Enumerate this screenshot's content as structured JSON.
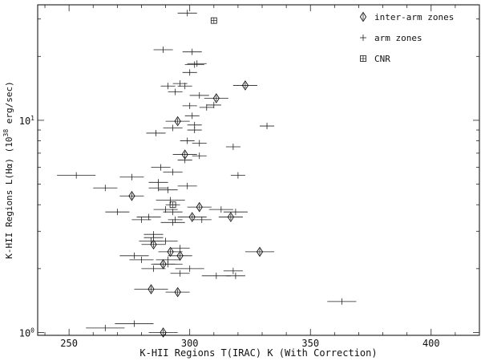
{
  "chart_data": {
    "type": "scatter",
    "title": "",
    "xlabel": "K-HII Regions T(IRAC) K (With Correction)",
    "ylabel_main": "K-HII Regions L(Hα) (10",
    "ylabel_exp": "38",
    "ylabel_tail": " erg/sec)",
    "xlim": [
      237,
      420
    ],
    "ylim": [
      0.97,
      35
    ],
    "y_scale": "log",
    "x_ticks": [
      250,
      300,
      350,
      400
    ],
    "x_tick_labels": [
      "250",
      "300",
      "350",
      "400"
    ],
    "y_tick_labels": [
      {
        "value": 1,
        "base": "10",
        "exp": "0"
      },
      {
        "value": 10,
        "base": "10",
        "exp": "1"
      }
    ],
    "legend_position": "top-right",
    "legend": [
      {
        "name": "inter-arm zones",
        "marker": "diamond"
      },
      {
        "name": "arm zones",
        "marker": "plus"
      },
      {
        "name": "CNR",
        "marker": "boxplus"
      }
    ],
    "series": [
      {
        "name": "inter-arm zones",
        "marker": "diamond",
        "points": [
          [
            323,
            14.6
          ],
          [
            311,
            12.7
          ],
          [
            295,
            9.9
          ],
          [
            298,
            6.9
          ],
          [
            276,
            4.4
          ],
          [
            304,
            3.9
          ],
          [
            301,
            3.5
          ],
          [
            317,
            3.5
          ],
          [
            285,
            2.6
          ],
          [
            292,
            2.4
          ],
          [
            296,
            2.3
          ],
          [
            329,
            2.4
          ],
          [
            289,
            2.1
          ],
          [
            284,
            1.6
          ],
          [
            295,
            1.55
          ],
          [
            289,
            1.0
          ]
        ],
        "xerr": [
          5,
          5,
          5,
          5,
          5,
          5,
          6,
          5,
          5,
          5,
          5,
          6,
          5,
          7,
          5,
          6
        ]
      },
      {
        "name": "arm zones",
        "marker": "plus",
        "points": [
          [
            299,
            32
          ],
          [
            289,
            21.5
          ],
          [
            301,
            21
          ],
          [
            303,
            18.5
          ],
          [
            302,
            18.3
          ],
          [
            300,
            16.8
          ],
          [
            296,
            14.9
          ],
          [
            291,
            14.5
          ],
          [
            298,
            14.5
          ],
          [
            294,
            13.6
          ],
          [
            304,
            13.1
          ],
          [
            310,
            11.8
          ],
          [
            300,
            11.7
          ],
          [
            307,
            11.5
          ],
          [
            301,
            10.5
          ],
          [
            293,
            9.2
          ],
          [
            302,
            9.5
          ],
          [
            302,
            9.0
          ],
          [
            286,
            8.7
          ],
          [
            332,
            9.4
          ],
          [
            299,
            8.0
          ],
          [
            304,
            7.8
          ],
          [
            318,
            7.5
          ],
          [
            304,
            6.8
          ],
          [
            298,
            6.5
          ],
          [
            288,
            6.0
          ],
          [
            293,
            5.7
          ],
          [
            253,
            5.5
          ],
          [
            276,
            5.4
          ],
          [
            320,
            5.5
          ],
          [
            287,
            5.1
          ],
          [
            299,
            4.9
          ],
          [
            287,
            4.8
          ],
          [
            265,
            4.8
          ],
          [
            291,
            4.7
          ],
          [
            292,
            4.2
          ],
          [
            290,
            3.8
          ],
          [
            293,
            3.7
          ],
          [
            270,
            3.7
          ],
          [
            313,
            3.8
          ],
          [
            319,
            3.7
          ],
          [
            283,
            3.5
          ],
          [
            280,
            3.4
          ],
          [
            294,
            3.4
          ],
          [
            305,
            3.4
          ],
          [
            293,
            3.3
          ],
          [
            285,
            2.9
          ],
          [
            285,
            2.8
          ],
          [
            284,
            2.7
          ],
          [
            290,
            2.7
          ],
          [
            296,
            2.5
          ],
          [
            277,
            2.3
          ],
          [
            280,
            2.2
          ],
          [
            291,
            2.2
          ],
          [
            285,
            2.0
          ],
          [
            291,
            2.1
          ],
          [
            300,
            2.0
          ],
          [
            318,
            1.95
          ],
          [
            296,
            1.9
          ],
          [
            319,
            1.85
          ],
          [
            311,
            1.85
          ],
          [
            363,
            1.4
          ],
          [
            277,
            1.1
          ],
          [
            265,
            1.05
          ]
        ],
        "xerr": [
          4,
          4,
          4,
          4,
          4,
          3,
          3,
          3,
          3,
          3,
          4,
          3,
          3,
          3,
          3,
          4,
          3,
          3,
          4,
          3,
          3,
          3,
          3,
          3,
          3,
          4,
          4,
          8,
          5,
          3,
          4,
          4,
          4,
          5,
          4,
          6,
          5,
          4,
          5,
          5,
          5,
          5,
          4,
          3,
          4,
          5,
          4,
          4,
          5,
          5,
          4,
          6,
          5,
          5,
          5,
          6,
          6,
          4,
          4,
          4,
          6,
          6,
          8,
          8
        ]
      },
      {
        "name": "CNR",
        "marker": "boxplus",
        "points": [
          [
            293,
            4.0
          ],
          [
            310,
            29.5
          ]
        ],
        "xerr": [
          3,
          0
        ]
      }
    ]
  }
}
